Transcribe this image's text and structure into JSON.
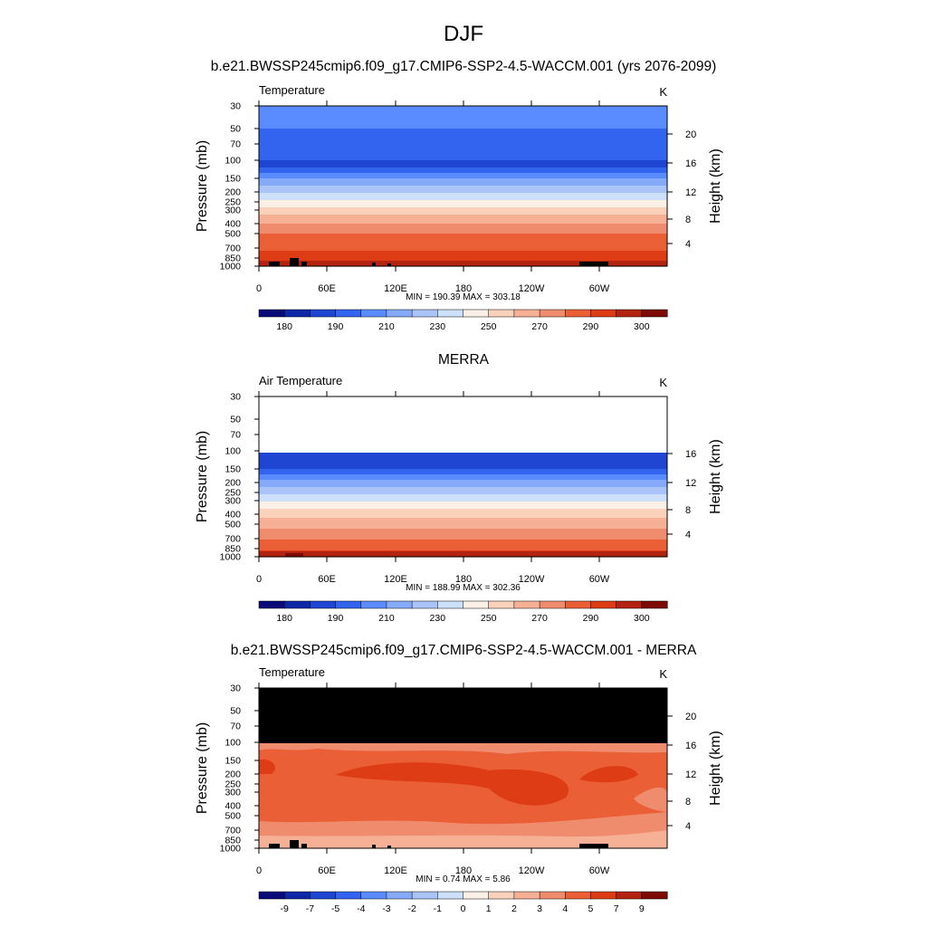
{
  "figure": {
    "title": "DJF",
    "top_subtitle": "b.e21.BWSSP245cmip6.f09_g17.CMIP6-SSP2-4.5-WACCM.001 (yrs 2076-2099)",
    "mid_subtitle": "MERRA",
    "bottom_subtitle": "b.e21.BWSSP245cmip6.f09_g17.CMIP6-SSP2-4.5-WACCM.001 - MERRA"
  },
  "chart_data": [
    {
      "type": "heatmap",
      "left_label": "Temperature",
      "units": "K",
      "ylabel": "Pressure (mb)",
      "y2label": "Height (km)",
      "xticks": [
        "0",
        "60E",
        "120E",
        "180",
        "120W",
        "60W"
      ],
      "yticks": [
        "30",
        "50",
        "70",
        "100",
        "150",
        "200",
        "250",
        "300",
        "400",
        "500",
        "700",
        "850",
        "1000"
      ],
      "y2ticks": [
        "20",
        "16",
        "12",
        "8",
        "4"
      ],
      "stats_text": "MIN = 190.39  MAX = 303.18",
      "min": 190.39,
      "max": 303.18,
      "colorbar_ticks": [
        "180",
        "190",
        "210",
        "230",
        "250",
        "270",
        "290",
        "300"
      ]
    },
    {
      "type": "heatmap",
      "left_label": "Air Temperature",
      "units": "K",
      "ylabel": "Pressure (mb)",
      "y2label": "Height (km)",
      "xticks": [
        "0",
        "60E",
        "120E",
        "180",
        "120W",
        "60W"
      ],
      "yticks": [
        "30",
        "50",
        "70",
        "100",
        "150",
        "200",
        "250",
        "300",
        "400",
        "500",
        "700",
        "850",
        "1000"
      ],
      "y2ticks": [
        "16",
        "12",
        "8",
        "4"
      ],
      "stats_text": "MIN = 188.99  MAX = 302.36",
      "min": 188.99,
      "max": 302.36,
      "colorbar_ticks": [
        "180",
        "190",
        "210",
        "230",
        "250",
        "270",
        "290",
        "300"
      ]
    },
    {
      "type": "heatmap",
      "left_label": "Temperature",
      "units": "K",
      "ylabel": "Pressure (mb)",
      "y2label": "Height (km)",
      "xticks": [
        "0",
        "60E",
        "120E",
        "180",
        "120W",
        "60W"
      ],
      "yticks": [
        "30",
        "50",
        "70",
        "100",
        "150",
        "200",
        "250",
        "300",
        "400",
        "500",
        "700",
        "850",
        "1000"
      ],
      "y2ticks": [
        "20",
        "16",
        "12",
        "8",
        "4"
      ],
      "stats_text": "MIN =   0.74  MAX =   5.86",
      "min": 0.74,
      "max": 5.86,
      "colorbar_ticks": [
        "-9",
        "-7",
        "-5",
        "-4",
        "-3",
        "-2",
        "-1",
        "0",
        "1",
        "2",
        "3",
        "4",
        "5",
        "7",
        "9"
      ]
    }
  ],
  "colors": {
    "abs_scale": [
      "#0a0a78",
      "#0f28a8",
      "#1e46d2",
      "#3264f0",
      "#5a8cff",
      "#86aafa",
      "#aac4fa",
      "#cde0fa",
      "#faf0e6",
      "#fad2bb",
      "#f5b096",
      "#f08c6e",
      "#eb5f37",
      "#de3c14",
      "#b4230f",
      "#7d0a05"
    ],
    "diff_scale": [
      "#0a0a78",
      "#0f28a8",
      "#1e46d2",
      "#3264f0",
      "#5a8cff",
      "#86aafa",
      "#aac4fa",
      "#cde0fa",
      "#faf0e6",
      "#fad2bb",
      "#f5b096",
      "#f08c6e",
      "#eb5f37",
      "#de3c14",
      "#b4230f",
      "#7d0a05"
    ],
    "missing": "#000000"
  }
}
